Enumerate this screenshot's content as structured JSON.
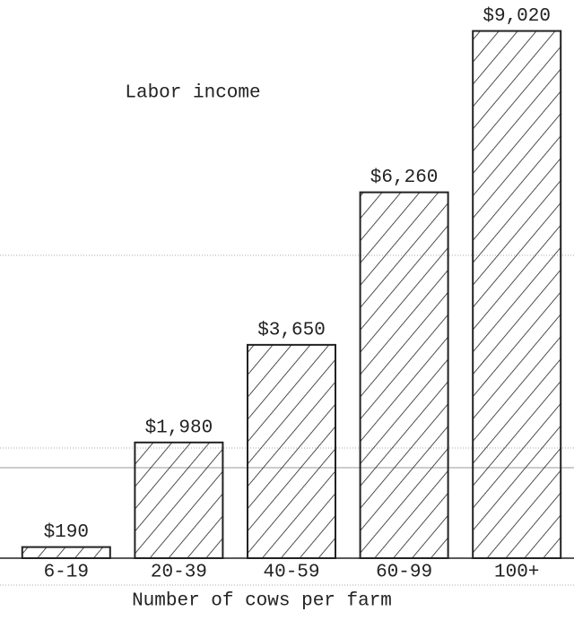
{
  "chart_data": {
    "type": "bar",
    "title": "Labor income",
    "x_label": "Number of cows per farm",
    "categories": [
      "6-19",
      "20-39",
      "40-59",
      "60-99",
      "100+"
    ],
    "values": [
      190,
      1980,
      3650,
      6260,
      9020
    ],
    "value_labels": [
      "$190",
      "$1,980",
      "$3,650",
      "$6,260",
      "$9,020"
    ],
    "ylim": [
      0,
      9550
    ],
    "color": "#222222"
  }
}
